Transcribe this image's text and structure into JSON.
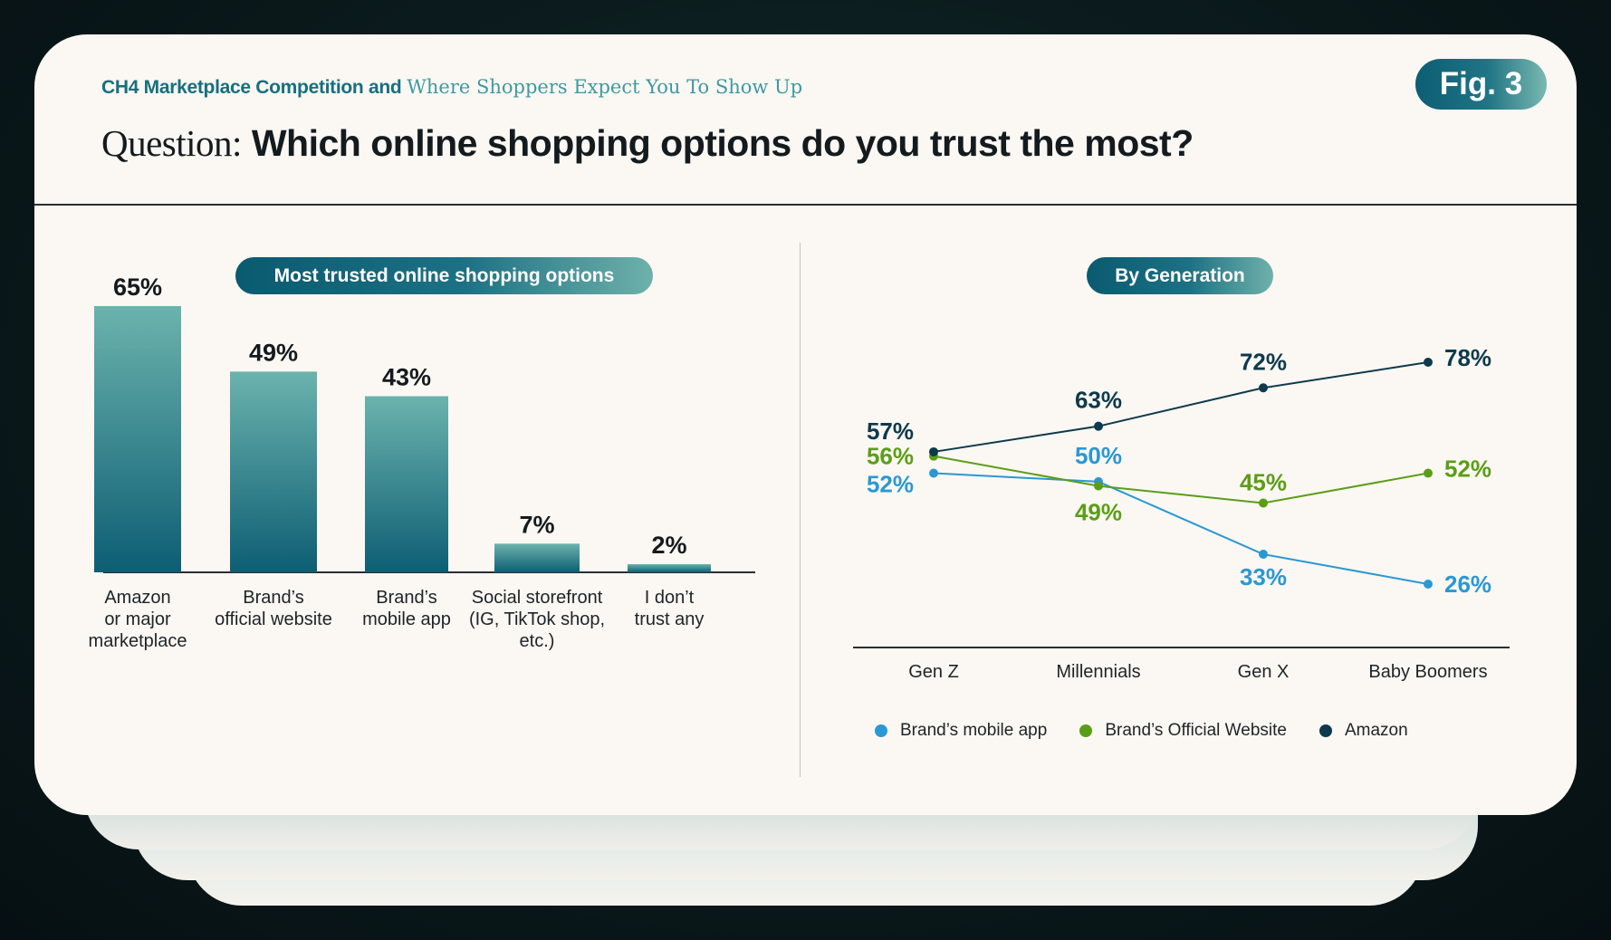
{
  "header": {
    "chapter_sans": "CH4 Marketplace Competition and",
    "chapter_serif": "Where Shoppers Expect You To Show Up",
    "question_prefix": "Question:",
    "question_text": "Which online shopping options do you trust the most?",
    "figure_label": "Fig. 3"
  },
  "colors": {
    "teal_dark": "#0d5e74",
    "teal_light": "#6bb3ad",
    "blue": "#2a98d4",
    "green": "#5a9e17",
    "navy": "#0d3a4c"
  },
  "chart_data": [
    {
      "type": "bar",
      "title": "Most trusted online shopping options",
      "categories": [
        [
          "Amazon",
          "or major",
          "marketplace"
        ],
        [
          "Brand’s",
          "official website"
        ],
        [
          "Brand’s",
          "mobile app"
        ],
        [
          "Social storefront",
          "(IG, TikTok shop,",
          "etc.)"
        ],
        [
          "I don’t",
          "trust any"
        ]
      ],
      "values": [
        65,
        49,
        43,
        7,
        2
      ],
      "value_labels": [
        "65%",
        "49%",
        "43%",
        "7%",
        "2%"
      ],
      "unit": "%",
      "ylim": [
        0,
        65
      ],
      "grid": false
    },
    {
      "type": "line",
      "title": "By Generation",
      "categories": [
        "Gen Z",
        "Millennials",
        "Gen X",
        "Baby Boomers"
      ],
      "ylim": [
        26,
        78
      ],
      "grid": false,
      "series": [
        {
          "name": "Brand’s mobile app",
          "color": "#2a98d4",
          "values": [
            52,
            50,
            33,
            26
          ],
          "labels": [
            "52%",
            "50%",
            "33%",
            "26%"
          ]
        },
        {
          "name": "Brand’s Official Website",
          "color": "#5a9e17",
          "values": [
            56,
            49,
            45,
            52
          ],
          "labels": [
            "56%",
            "49%",
            "45%",
            "52%"
          ]
        },
        {
          "name": "Amazon",
          "color": "#0d3a4c",
          "values": [
            57,
            63,
            72,
            78
          ],
          "labels": [
            "57%",
            "63%",
            "72%",
            "78%"
          ]
        }
      ],
      "legend": "bottom"
    }
  ]
}
